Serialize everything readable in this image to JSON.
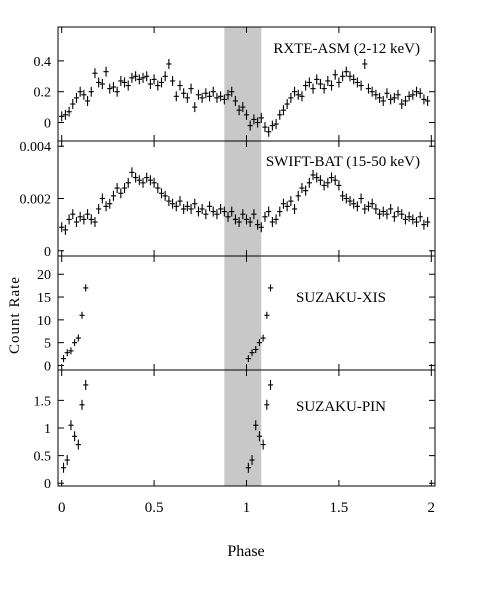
{
  "figure": {
    "xlabel": "Phase",
    "ylabel": "Count Rate",
    "eclipse_band": [
      0.88,
      1.08
    ],
    "colors": {
      "band": "#c8c8c8",
      "ink": "#000000"
    },
    "xaxis": {
      "range": [
        -0.02,
        2.02
      ],
      "ticks": [
        0,
        0.5,
        1,
        1.5,
        2
      ],
      "tick_labels": [
        "0",
        "0.5",
        "1",
        "1.5",
        "2"
      ]
    }
  },
  "chart_data": [
    {
      "type": "scatter",
      "label": "RXTE-ASM (2-12 keV)",
      "ylim": [
        -0.12,
        0.62
      ],
      "yticks": [
        0,
        0.2,
        0.4
      ],
      "ytick_labels": [
        "0",
        "0.2",
        "0.4"
      ],
      "errorbars": true,
      "x": [
        0.0,
        0.02,
        0.04,
        0.06,
        0.08,
        0.1,
        0.12,
        0.14,
        0.16,
        0.18,
        0.2,
        0.22,
        0.24,
        0.26,
        0.28,
        0.3,
        0.32,
        0.34,
        0.36,
        0.38,
        0.4,
        0.42,
        0.44,
        0.46,
        0.48,
        0.5,
        0.52,
        0.54,
        0.56,
        0.58,
        0.6,
        0.62,
        0.64,
        0.66,
        0.68,
        0.7,
        0.72,
        0.74,
        0.76,
        0.78,
        0.8,
        0.82,
        0.84,
        0.86,
        0.88,
        0.9,
        0.92,
        0.94,
        0.96,
        0.98,
        1.0,
        1.02,
        1.04,
        1.06,
        1.08,
        1.1,
        1.12,
        1.14,
        1.16,
        1.18,
        1.2,
        1.22,
        1.24,
        1.26,
        1.28,
        1.3,
        1.32,
        1.34,
        1.36,
        1.38,
        1.4,
        1.42,
        1.44,
        1.46,
        1.48,
        1.5,
        1.52,
        1.54,
        1.56,
        1.58,
        1.6,
        1.62,
        1.64,
        1.66,
        1.68,
        1.7,
        1.72,
        1.74,
        1.76,
        1.78,
        1.8,
        1.82,
        1.84,
        1.86,
        1.88,
        1.9,
        1.92,
        1.94,
        1.96,
        1.98
      ],
      "y": [
        0.04,
        0.05,
        0.07,
        0.12,
        0.16,
        0.2,
        0.18,
        0.14,
        0.2,
        0.32,
        0.26,
        0.25,
        0.33,
        0.22,
        0.23,
        0.2,
        0.27,
        0.26,
        0.24,
        0.29,
        0.3,
        0.28,
        0.29,
        0.3,
        0.25,
        0.28,
        0.24,
        0.26,
        0.3,
        0.38,
        0.27,
        0.17,
        0.24,
        0.19,
        0.16,
        0.22,
        0.1,
        0.18,
        0.16,
        0.19,
        0.17,
        0.2,
        0.16,
        0.17,
        0.15,
        0.18,
        0.2,
        0.14,
        0.08,
        0.1,
        0.05,
        -0.02,
        0.02,
        0.0,
        0.03,
        -0.03,
        -0.06,
        -0.02,
        -0.01,
        0.05,
        0.08,
        0.12,
        0.16,
        0.2,
        0.18,
        0.17,
        0.24,
        0.26,
        0.22,
        0.28,
        0.25,
        0.22,
        0.27,
        0.24,
        0.31,
        0.26,
        0.3,
        0.33,
        0.3,
        0.28,
        0.26,
        0.24,
        0.38,
        0.22,
        0.2,
        0.18,
        0.16,
        0.14,
        0.19,
        0.15,
        0.16,
        0.18,
        0.12,
        0.14,
        0.17,
        0.18,
        0.2,
        0.19,
        0.15,
        0.14
      ]
    },
    {
      "type": "scatter",
      "label": "SWIFT-BAT (15-50 keV)",
      "ylim": [
        -0.0002,
        0.0042
      ],
      "yticks": [
        0,
        0.002,
        0.004
      ],
      "ytick_labels": [
        "0",
        "0.002",
        "0.004"
      ],
      "errorbars": true,
      "x": [
        0.0,
        0.02,
        0.04,
        0.06,
        0.08,
        0.1,
        0.12,
        0.14,
        0.16,
        0.18,
        0.2,
        0.22,
        0.24,
        0.26,
        0.28,
        0.3,
        0.32,
        0.34,
        0.36,
        0.38,
        0.4,
        0.42,
        0.44,
        0.46,
        0.48,
        0.5,
        0.52,
        0.54,
        0.56,
        0.58,
        0.6,
        0.62,
        0.64,
        0.66,
        0.68,
        0.7,
        0.72,
        0.74,
        0.76,
        0.78,
        0.8,
        0.82,
        0.84,
        0.86,
        0.88,
        0.9,
        0.92,
        0.94,
        0.96,
        0.98,
        1.0,
        1.02,
        1.04,
        1.06,
        1.08,
        1.1,
        1.12,
        1.14,
        1.16,
        1.18,
        1.2,
        1.22,
        1.24,
        1.26,
        1.28,
        1.3,
        1.32,
        1.34,
        1.36,
        1.38,
        1.4,
        1.42,
        1.44,
        1.46,
        1.48,
        1.5,
        1.52,
        1.54,
        1.56,
        1.58,
        1.6,
        1.62,
        1.64,
        1.66,
        1.68,
        1.7,
        1.72,
        1.74,
        1.76,
        1.78,
        1.8,
        1.82,
        1.84,
        1.86,
        1.88,
        1.9,
        1.92,
        1.94,
        1.96,
        1.98
      ],
      "y": [
        0.0009,
        0.0008,
        0.0012,
        0.0014,
        0.0011,
        0.0013,
        0.0012,
        0.0014,
        0.0012,
        0.0011,
        0.0016,
        0.002,
        0.0017,
        0.0018,
        0.0021,
        0.0024,
        0.0022,
        0.0024,
        0.0026,
        0.003,
        0.0028,
        0.0027,
        0.0026,
        0.0028,
        0.0027,
        0.0026,
        0.0024,
        0.0022,
        0.0021,
        0.0019,
        0.0018,
        0.0017,
        0.0019,
        0.0016,
        0.0017,
        0.0016,
        0.0018,
        0.0015,
        0.0016,
        0.0014,
        0.0017,
        0.0015,
        0.0014,
        0.0016,
        0.0015,
        0.0013,
        0.0015,
        0.0012,
        0.0011,
        0.0014,
        0.0012,
        0.0011,
        0.0014,
        0.001,
        0.0009,
        0.0013,
        0.0015,
        0.0011,
        0.0012,
        0.0015,
        0.0018,
        0.0017,
        0.0019,
        0.0016,
        0.0021,
        0.0024,
        0.0023,
        0.0026,
        0.0029,
        0.0028,
        0.0027,
        0.0025,
        0.0026,
        0.0028,
        0.0027,
        0.0025,
        0.0021,
        0.002,
        0.0019,
        0.0018,
        0.0017,
        0.002,
        0.0016,
        0.0017,
        0.0018,
        0.0016,
        0.0014,
        0.0015,
        0.0014,
        0.0016,
        0.0013,
        0.0015,
        0.0014,
        0.0012,
        0.0013,
        0.0012,
        0.0011,
        0.0013,
        0.001,
        0.0011
      ]
    },
    {
      "type": "scatter",
      "label": "SUZAKU-XIS",
      "ylim": [
        -1,
        24
      ],
      "yticks": [
        0,
        5,
        10,
        15,
        20
      ],
      "ytick_labels": [
        "0",
        "5",
        "10",
        "15",
        "20"
      ],
      "errorbars": false,
      "x": [
        0.01,
        0.03,
        0.05,
        0.07,
        0.09,
        0.11,
        0.13,
        1.01,
        1.03,
        1.05,
        1.07,
        1.09,
        1.11,
        1.13
      ],
      "y": [
        1.5,
        2.8,
        3.2,
        5.0,
        6.0,
        11.0,
        17.0,
        1.5,
        2.8,
        3.5,
        5.0,
        6.0,
        11.0,
        17.0
      ]
    },
    {
      "type": "scatter",
      "label": "SUZAKU-PIN",
      "ylim": [
        -0.05,
        2.05
      ],
      "yticks": [
        0,
        0.5,
        1,
        1.5
      ],
      "ytick_labels": [
        "0",
        "0.5",
        "1",
        "1.5"
      ],
      "errorbars": true,
      "x": [
        0.01,
        0.03,
        0.05,
        0.07,
        0.09,
        0.11,
        0.13,
        1.01,
        1.03,
        1.05,
        1.07,
        1.09,
        1.11,
        1.13
      ],
      "y": [
        0.28,
        0.42,
        1.05,
        0.85,
        0.7,
        1.42,
        1.78,
        0.28,
        0.42,
        1.05,
        0.85,
        0.7,
        1.42,
        1.78
      ]
    }
  ]
}
